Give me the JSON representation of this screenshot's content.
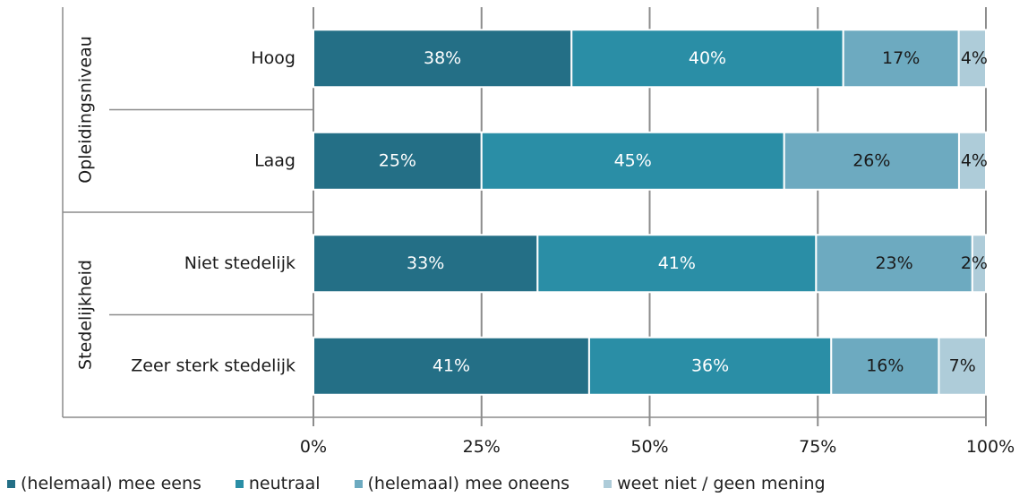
{
  "chart_data": {
    "type": "bar",
    "orientation": "horizontal",
    "stacked": true,
    "groups": [
      {
        "label": "Opleidingsniveau",
        "categories": [
          "Hoog",
          "Laag"
        ]
      },
      {
        "label": "Stedelijkheid",
        "categories": [
          "Niet stedelijk",
          "Zeer sterk stedelijk"
        ]
      }
    ],
    "categories": [
      "Hoog",
      "Laag",
      "Niet stedelijk",
      "Zeer sterk stedelijk"
    ],
    "series": [
      {
        "name": "(helemaal) mee eens",
        "color": "#246F86",
        "label_color": "#ffffff",
        "values": [
          38,
          25,
          33,
          41
        ]
      },
      {
        "name": "neutraal",
        "color": "#2A8EA6",
        "label_color": "#ffffff",
        "values": [
          40,
          45,
          41,
          36
        ]
      },
      {
        "name": "(helemaal) mee oneens",
        "color": "#6DAAC0",
        "label_color": "#1a1a1a",
        "values": [
          17,
          26,
          23,
          16
        ]
      },
      {
        "name": "weet niet / geen mening",
        "color": "#AECCD9",
        "label_color": "#1a1a1a",
        "values": [
          4,
          4,
          2,
          7
        ]
      }
    ],
    "value_suffix": "%",
    "x_ticks": [
      "0%",
      "25%",
      "50%",
      "75%",
      "100%"
    ],
    "xlim": [
      0,
      100
    ],
    "grid": true,
    "legend_position": "bottom-left",
    "title": "",
    "xlabel": "",
    "ylabel": ""
  }
}
